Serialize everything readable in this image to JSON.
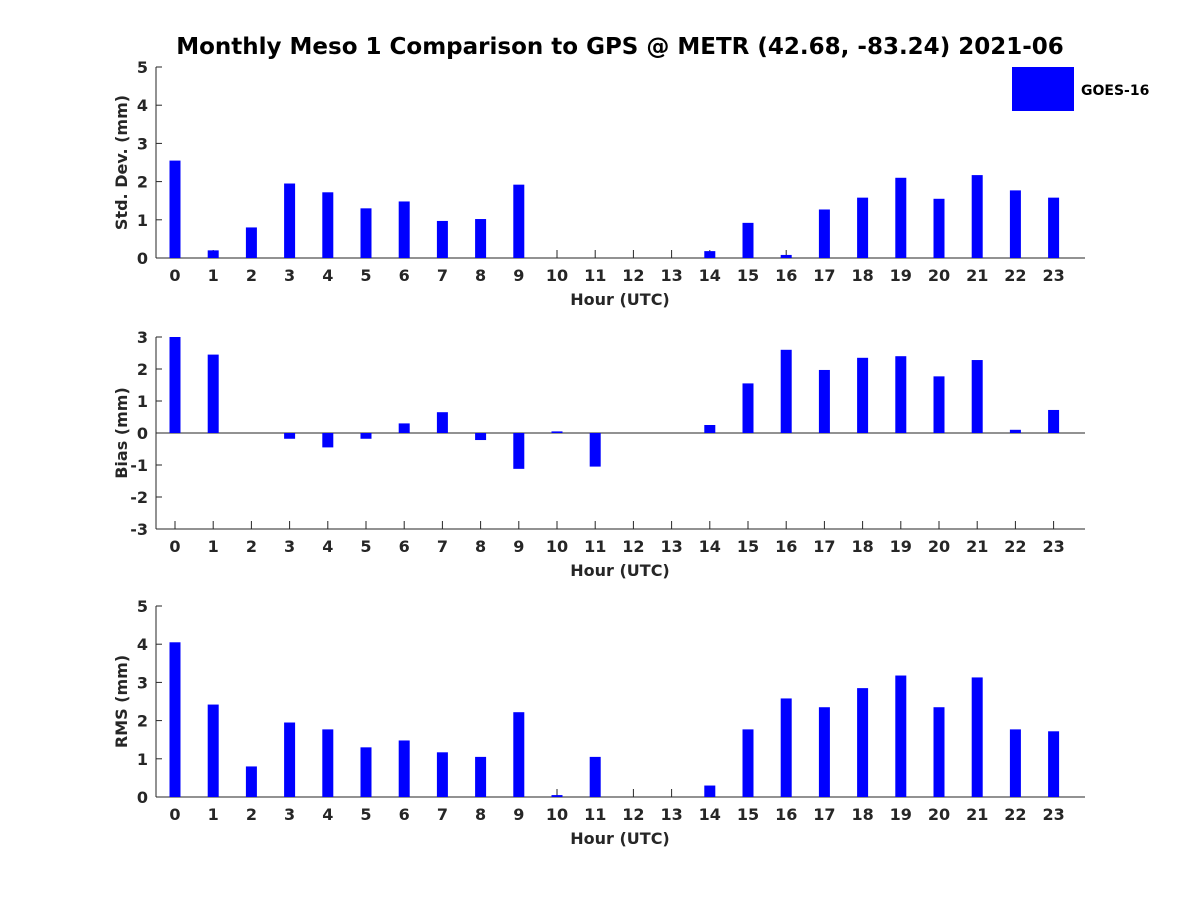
{
  "title": "Monthly Meso 1 Comparison to GPS @ METR (42.68, -83.24) 2021-06",
  "legend": {
    "label": "GOES-16",
    "placement": "top-right",
    "color": "#0000ff"
  },
  "bar_color": "#0000ff",
  "chart_data": [
    {
      "type": "bar",
      "categories": [
        "0",
        "1",
        "2",
        "3",
        "4",
        "5",
        "6",
        "7",
        "8",
        "9",
        "10",
        "11",
        "12",
        "13",
        "14",
        "15",
        "16",
        "17",
        "18",
        "19",
        "20",
        "21",
        "22",
        "23"
      ],
      "series": [
        {
          "name": "GOES-16",
          "values": [
            2.55,
            0.2,
            0.8,
            1.95,
            1.72,
            1.3,
            1.48,
            0.97,
            1.02,
            1.92,
            null,
            null,
            null,
            null,
            0.18,
            0.92,
            0.08,
            1.27,
            1.58,
            2.1,
            1.55,
            2.17,
            1.77,
            1.58
          ]
        }
      ],
      "xlabel": "Hour (UTC)",
      "ylabel": "Std. Dev. (mm)",
      "ylim": [
        0,
        5
      ],
      "yticks": [
        "0",
        "1",
        "2",
        "3",
        "4",
        "5"
      ],
      "grid": false
    },
    {
      "type": "bar",
      "categories": [
        "0",
        "1",
        "2",
        "3",
        "4",
        "5",
        "6",
        "7",
        "8",
        "9",
        "10",
        "11",
        "12",
        "13",
        "14",
        "15",
        "16",
        "17",
        "18",
        "19",
        "20",
        "21",
        "22",
        "23"
      ],
      "series": [
        {
          "name": "GOES-16",
          "values": [
            3.0,
            2.45,
            null,
            -0.18,
            -0.45,
            -0.18,
            0.3,
            0.65,
            -0.22,
            -1.12,
            0.05,
            -1.05,
            null,
            null,
            0.25,
            1.55,
            2.6,
            1.97,
            2.35,
            2.4,
            1.77,
            2.28,
            0.1,
            0.72
          ]
        }
      ],
      "xlabel": "Hour (UTC)",
      "ylabel": "Bias (mm)",
      "ylim": [
        -3,
        3
      ],
      "yticks": [
        "-3",
        "-2",
        "-1",
        "0",
        "1",
        "2",
        "3"
      ],
      "grid": false
    },
    {
      "type": "bar",
      "categories": [
        "0",
        "1",
        "2",
        "3",
        "4",
        "5",
        "6",
        "7",
        "8",
        "9",
        "10",
        "11",
        "12",
        "13",
        "14",
        "15",
        "16",
        "17",
        "18",
        "19",
        "20",
        "21",
        "22",
        "23"
      ],
      "series": [
        {
          "name": "GOES-16",
          "values": [
            4.05,
            2.42,
            0.8,
            1.95,
            1.77,
            1.3,
            1.48,
            1.17,
            1.05,
            2.22,
            0.05,
            1.05,
            null,
            null,
            0.3,
            1.77,
            2.58,
            2.35,
            2.85,
            3.18,
            2.35,
            3.13,
            1.77,
            1.72
          ]
        }
      ],
      "xlabel": "Hour (UTC)",
      "ylabel": "RMS (mm)",
      "ylim": [
        0,
        5
      ],
      "yticks": [
        "0",
        "1",
        "2",
        "3",
        "4",
        "5"
      ],
      "grid": false
    }
  ]
}
